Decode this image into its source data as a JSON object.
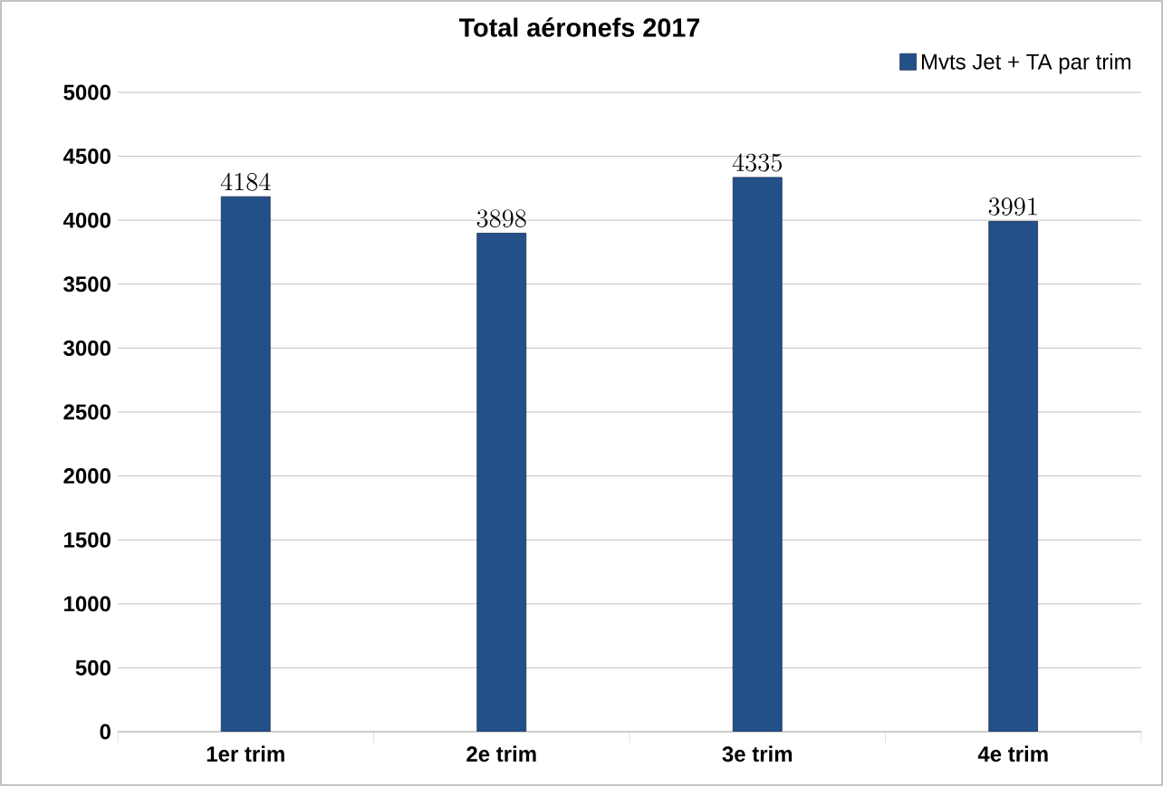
{
  "chart_data": {
    "type": "bar",
    "title": "Total aéronefs 2017",
    "categories": [
      "1er trim",
      "2e trim",
      "3e trim",
      "4e trim"
    ],
    "series": [
      {
        "name": "Mvts Jet + TA par trim",
        "color": "#24508a",
        "values": [
          4184,
          3898,
          4335,
          3991
        ]
      }
    ],
    "ylim": [
      0,
      5000
    ],
    "yticks": [
      0,
      500,
      1000,
      1500,
      2000,
      2500,
      3000,
      3500,
      4000,
      4500,
      5000
    ],
    "grid": "y",
    "legend": "top right",
    "data_labels": true
  }
}
